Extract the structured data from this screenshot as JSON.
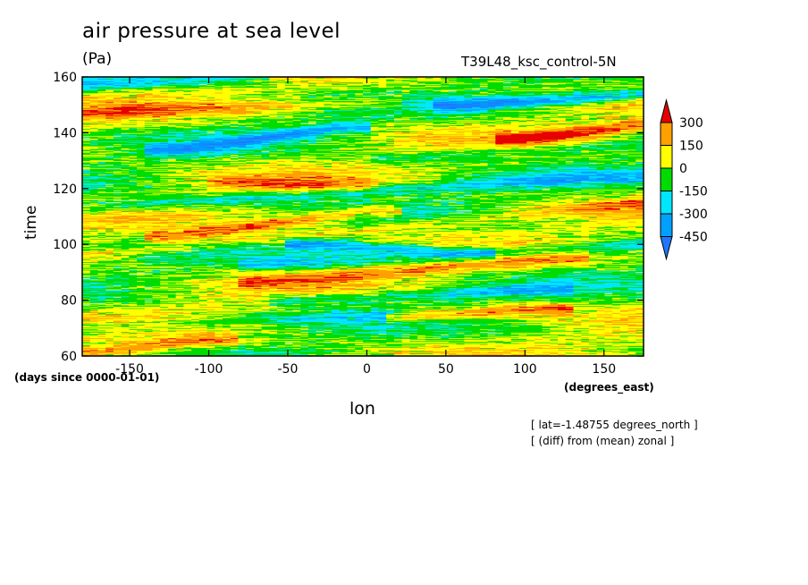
{
  "chart_data": {
    "type": "heatmap",
    "title": "air pressure at sea level",
    "units": "(Pa)",
    "run_name": "T39L48_ksc_control-5N",
    "xlabel": "lon",
    "ylabel": "time",
    "x_units": "(degrees_east)",
    "y_units": "(days since 0000-01-01)",
    "xlim": [
      -180,
      175
    ],
    "ylim": [
      60,
      160
    ],
    "x_ticks": [
      -150,
      -100,
      -50,
      0,
      50,
      100,
      150
    ],
    "x_tick_labels": [
      "-150",
      "-100",
      "-50",
      "0",
      "50",
      "100",
      "150"
    ],
    "y_ticks": [
      60,
      80,
      100,
      120,
      140,
      160
    ],
    "y_tick_labels": [
      "60",
      "80",
      "100",
      "120",
      "140",
      "160"
    ],
    "annotations": [
      "[ lat=-1.48755 degrees_north ]",
      "[ (diff) from (mean) zonal ]"
    ],
    "colorbar": {
      "levels": [
        -450,
        -300,
        -150,
        0,
        150,
        300
      ],
      "level_labels": [
        "-450",
        "-300",
        "-150",
        "0",
        "150",
        "300"
      ],
      "colors": [
        "#1e78ff",
        "#00a0ff",
        "#00e6ff",
        "#00dc00",
        "#ffff00",
        "#ffa000",
        "#e60000"
      ],
      "extend": "both"
    },
    "bands": [
      {
        "t0": 103,
        "lon0": -120,
        "t1": 112,
        "lon1": 0,
        "value": 300
      },
      {
        "t0": 96,
        "lon0": -180,
        "t1": 115,
        "lon1": 175,
        "value": 150
      },
      {
        "t0": 87,
        "lon0": -60,
        "t1": 95,
        "lon1": 120,
        "value": 200
      },
      {
        "t0": 74,
        "lon0": 30,
        "t1": 77,
        "lon1": 110,
        "value": 300
      },
      {
        "t0": 61,
        "lon0": -180,
        "t1": 66,
        "lon1": -100,
        "value": 250
      },
      {
        "t0": 138,
        "lon0": 100,
        "t1": 143,
        "lon1": 175,
        "value": 300
      },
      {
        "t0": 122,
        "lon0": -80,
        "t1": 121,
        "lon1": -20,
        "value": 180
      },
      {
        "t0": 147,
        "lon0": -180,
        "t1": 151,
        "lon1": 0,
        "value": 180
      },
      {
        "t0": 100,
        "lon0": -30,
        "t1": 97,
        "lon1": 60,
        "value": -320
      },
      {
        "t0": 93,
        "lon0": -60,
        "t1": 100,
        "lon1": 175,
        "value": -200
      },
      {
        "t0": 134,
        "lon0": -120,
        "t1": 142,
        "lon1": -20,
        "value": -300
      },
      {
        "t0": 150,
        "lon0": 60,
        "t1": 154,
        "lon1": 175,
        "value": -380
      },
      {
        "t0": 157,
        "lon0": -180,
        "t1": 160,
        "lon1": -80,
        "value": -250
      },
      {
        "t0": 113,
        "lon0": -180,
        "t1": 125,
        "lon1": 175,
        "value": -220
      },
      {
        "t0": 70,
        "lon0": -180,
        "t1": 75,
        "lon1": 0,
        "value": -150
      },
      {
        "t0": 80,
        "lon0": -40,
        "t1": 84,
        "lon1": 110,
        "value": -220
      },
      {
        "t0": 131,
        "lon0": 20,
        "t1": 136,
        "lon1": 175,
        "value": -150
      }
    ]
  }
}
